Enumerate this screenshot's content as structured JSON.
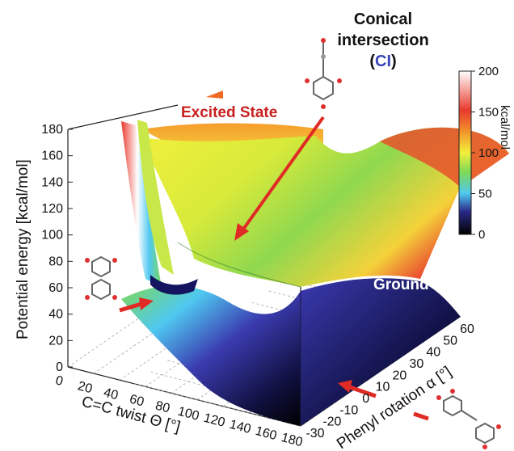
{
  "chart_data": {
    "type": "surface",
    "z_axis": {
      "label": "Potential energy  [kcal/mol]",
      "range": [
        0,
        180
      ],
      "ticks": [
        0,
        20,
        40,
        60,
        80,
        100,
        120,
        140,
        160,
        180
      ]
    },
    "x_axis": {
      "label": "C=C twist Θ [°]",
      "range": [
        0,
        180
      ],
      "ticks": [
        0,
        20,
        40,
        60,
        80,
        100,
        120,
        140,
        160,
        180
      ]
    },
    "y_axis": {
      "label": "Phenyl rotation α [°]",
      "range": [
        -30,
        60
      ],
      "ticks": [
        -30,
        -20,
        -10,
        0,
        10,
        20,
        30,
        40,
        50,
        60
      ]
    },
    "colorbar": {
      "unit": "kcal/mol",
      "range": [
        0,
        200
      ],
      "ticks": [
        0,
        50,
        100,
        150,
        200
      ],
      "colors": [
        "#000000",
        "#3b3bb0",
        "#4fc8f0",
        "#7ed957",
        "#f2ef3c",
        "#f39a2c",
        "#e83a2e",
        "#ffffff"
      ]
    },
    "surfaces": [
      {
        "name": "Excited State",
        "color": "#c8201e"
      },
      {
        "name": "Ground State",
        "color": "#2c2ca8"
      }
    ],
    "annotations": {
      "ci_line1": "Conical",
      "ci_line2": "intersection",
      "ci_open": "(",
      "ci_abbr": "CI",
      "ci_close": ")",
      "ci_abbr_color": "#3a44b8"
    },
    "grid": true
  }
}
